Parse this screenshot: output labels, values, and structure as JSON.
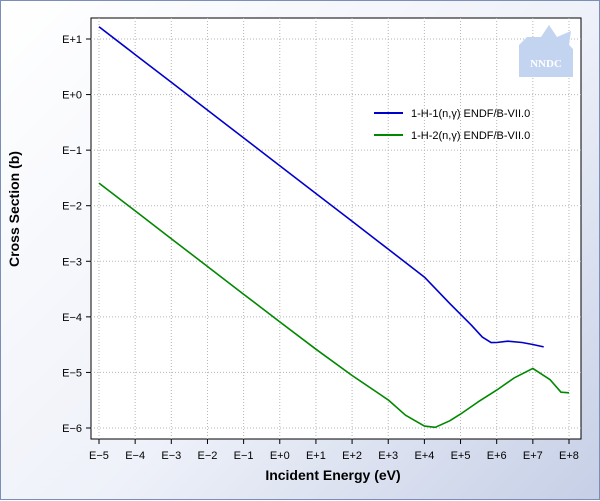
{
  "chart_data": {
    "type": "line",
    "title": "",
    "xlabel": "Incident Energy (eV)",
    "ylabel": "Cross Section (b)",
    "x_scale": "log",
    "y_scale": "log",
    "xlim": [
      1e-05,
      100000000.0
    ],
    "ylim": [
      1e-06,
      10
    ],
    "x_ticks": [
      "E−5",
      "E−4",
      "E−3",
      "E−2",
      "E−1",
      "E+0",
      "E+1",
      "E+2",
      "E+3",
      "E+4",
      "E+5",
      "E+6",
      "E+7",
      "E+8"
    ],
    "y_ticks": [
      "E−6",
      "E−5",
      "E−4",
      "E−3",
      "E−2",
      "E−1",
      "E+0",
      "E+1"
    ],
    "grid": true,
    "legend_position": "top-right",
    "series": [
      {
        "name": "1-H-1(n,γ) ENDF/B-VII.0",
        "color": "#0000cc",
        "x": [
          1e-05,
          0.0001,
          0.001,
          0.01,
          0.1,
          1,
          10,
          100,
          1000,
          10000,
          50000,
          200000,
          400000,
          700000,
          1000000,
          2000000,
          5000000,
          10000000,
          20000000
        ],
        "y": [
          16.6,
          5.25,
          1.66,
          0.525,
          0.166,
          0.0525,
          0.0166,
          0.00525,
          0.00166,
          0.00052,
          0.000175,
          7.07e-05,
          4.33e-05,
          3.44e-05,
          3.45e-05,
          3.65e-05,
          3.45e-05,
          3.18e-05,
          2.88e-05
        ]
      },
      {
        "name": "1-H-2(n,γ) ENDF/B-VII.0",
        "color": "#008800",
        "x": [
          1e-05,
          0.0001,
          0.001,
          0.01,
          0.1,
          1,
          10,
          100,
          1000,
          3000,
          10000,
          20000,
          50000,
          100000,
          300000,
          1000000,
          3000000,
          10000000,
          30000000,
          60000000,
          100000000
        ],
        "y": [
          0.0255,
          0.00806,
          0.00255,
          0.000807,
          0.000256,
          8.12e-05,
          2.62e-05,
          8.8e-06,
          3.2e-06,
          1.7e-06,
          1.08e-06,
          1.03e-06,
          1.35e-06,
          1.78e-06,
          2.92e-06,
          4.8e-06,
          7.92e-06,
          1.18e-05,
          7.4e-06,
          4.4e-06,
          4.3e-06
        ]
      }
    ]
  },
  "watermark": {
    "text": "NNDC",
    "color": "#c2d4ef"
  }
}
